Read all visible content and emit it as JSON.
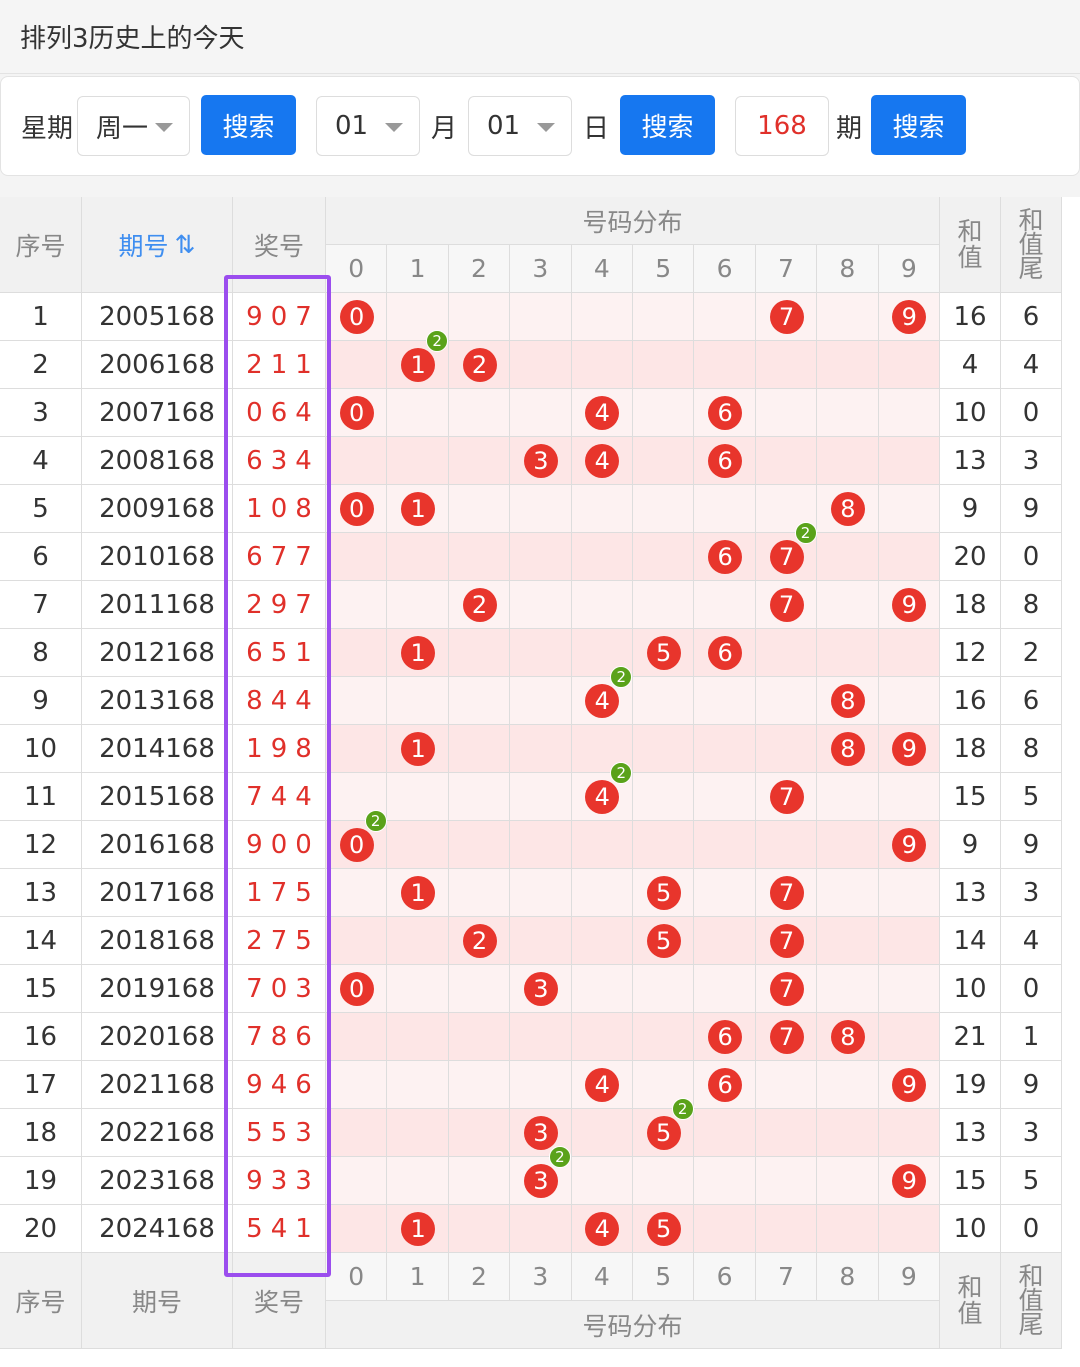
{
  "header": {
    "title": "排列3历史上的今天"
  },
  "search": {
    "weekday_label": "星期",
    "weekday": "周一",
    "button1": "搜索",
    "month": "01",
    "month_label": "月",
    "day": "01",
    "day_label": "日",
    "button2": "搜索",
    "issue": "168",
    "issue_label": "期",
    "button3": "搜索"
  },
  "table": {
    "head": {
      "index": "序号",
      "period": "期号",
      "sort_icon": "⇅",
      "number": "奖号",
      "dist": "号码分布",
      "sum": "和值",
      "tail": "和值尾",
      "digits": [
        "0",
        "1",
        "2",
        "3",
        "4",
        "5",
        "6",
        "7",
        "8",
        "9"
      ]
    },
    "rows": [
      {
        "index": "1",
        "period": "2005168",
        "number": "907",
        "balls": [
          "0",
          "7",
          "9"
        ],
        "repeat": null,
        "sum": "16",
        "tail": "6"
      },
      {
        "index": "2",
        "period": "2006168",
        "number": "211",
        "balls": [
          "1",
          "2"
        ],
        "repeat": {
          "ball": "1",
          "count": "2"
        },
        "sum": "4",
        "tail": "4"
      },
      {
        "index": "3",
        "period": "2007168",
        "number": "064",
        "balls": [
          "0",
          "4",
          "6"
        ],
        "repeat": null,
        "sum": "10",
        "tail": "0"
      },
      {
        "index": "4",
        "period": "2008168",
        "number": "634",
        "balls": [
          "3",
          "4",
          "6"
        ],
        "repeat": null,
        "sum": "13",
        "tail": "3"
      },
      {
        "index": "5",
        "period": "2009168",
        "number": "108",
        "balls": [
          "0",
          "1",
          "8"
        ],
        "repeat": null,
        "sum": "9",
        "tail": "9"
      },
      {
        "index": "6",
        "period": "2010168",
        "number": "677",
        "balls": [
          "6",
          "7"
        ],
        "repeat": {
          "ball": "7",
          "count": "2"
        },
        "sum": "20",
        "tail": "0"
      },
      {
        "index": "7",
        "period": "2011168",
        "number": "297",
        "balls": [
          "2",
          "7",
          "9"
        ],
        "repeat": null,
        "sum": "18",
        "tail": "8"
      },
      {
        "index": "8",
        "period": "2012168",
        "number": "651",
        "balls": [
          "1",
          "5",
          "6"
        ],
        "repeat": null,
        "sum": "12",
        "tail": "2"
      },
      {
        "index": "9",
        "period": "2013168",
        "number": "844",
        "balls": [
          "4",
          "8"
        ],
        "repeat": {
          "ball": "4",
          "count": "2"
        },
        "sum": "16",
        "tail": "6"
      },
      {
        "index": "10",
        "period": "2014168",
        "number": "198",
        "balls": [
          "1",
          "8",
          "9"
        ],
        "repeat": null,
        "sum": "18",
        "tail": "8"
      },
      {
        "index": "11",
        "period": "2015168",
        "number": "744",
        "balls": [
          "4",
          "7"
        ],
        "repeat": {
          "ball": "4",
          "count": "2"
        },
        "sum": "15",
        "tail": "5"
      },
      {
        "index": "12",
        "period": "2016168",
        "number": "900",
        "balls": [
          "0",
          "9"
        ],
        "repeat": {
          "ball": "0",
          "count": "2"
        },
        "sum": "9",
        "tail": "9"
      },
      {
        "index": "13",
        "period": "2017168",
        "number": "175",
        "balls": [
          "1",
          "5",
          "7"
        ],
        "repeat": null,
        "sum": "13",
        "tail": "3"
      },
      {
        "index": "14",
        "period": "2018168",
        "number": "275",
        "balls": [
          "2",
          "5",
          "7"
        ],
        "repeat": null,
        "sum": "14",
        "tail": "4"
      },
      {
        "index": "15",
        "period": "2019168",
        "number": "703",
        "balls": [
          "0",
          "3",
          "7"
        ],
        "repeat": null,
        "sum": "10",
        "tail": "0"
      },
      {
        "index": "16",
        "period": "2020168",
        "number": "786",
        "balls": [
          "6",
          "7",
          "8"
        ],
        "repeat": null,
        "sum": "21",
        "tail": "1"
      },
      {
        "index": "17",
        "period": "2021168",
        "number": "946",
        "balls": [
          "4",
          "6",
          "9"
        ],
        "repeat": null,
        "sum": "19",
        "tail": "9"
      },
      {
        "index": "18",
        "period": "2022168",
        "number": "553",
        "balls": [
          "3",
          "5"
        ],
        "repeat": {
          "ball": "5",
          "count": "2"
        },
        "sum": "13",
        "tail": "3"
      },
      {
        "index": "19",
        "period": "2023168",
        "number": "933",
        "balls": [
          "3",
          "9"
        ],
        "repeat": {
          "ball": "3",
          "count": "2"
        },
        "sum": "15",
        "tail": "5"
      },
      {
        "index": "20",
        "period": "2024168",
        "number": "541",
        "balls": [
          "1",
          "4",
          "5"
        ],
        "repeat": null,
        "sum": "10",
        "tail": "0"
      }
    ],
    "foot": {
      "index": "序号",
      "period": "期号",
      "number": "奖号",
      "dist": "号码分布",
      "sum": "和值",
      "tail": "和值尾",
      "digits": [
        "0",
        "1",
        "2",
        "3",
        "4",
        "5",
        "6",
        "7",
        "8",
        "9"
      ]
    }
  }
}
